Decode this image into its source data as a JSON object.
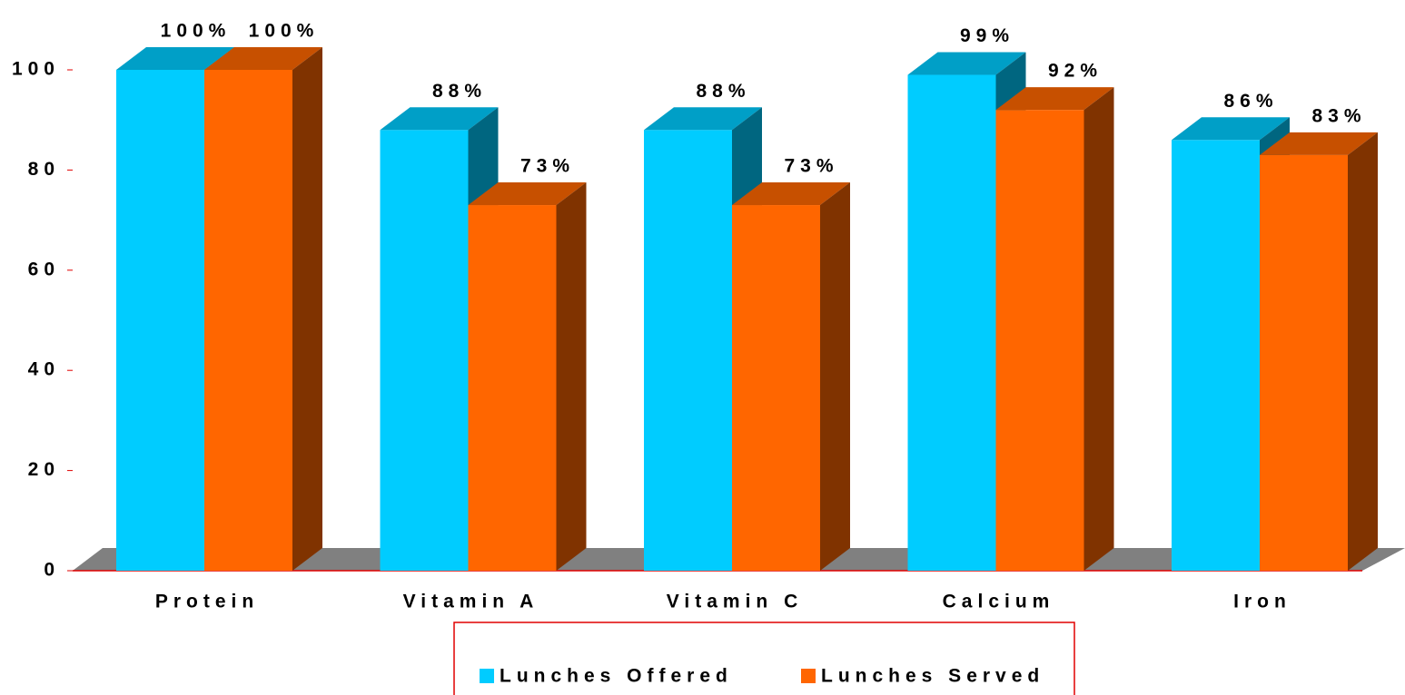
{
  "chart_data": {
    "type": "bar3d",
    "categories": [
      "Protein",
      "Vitamin A",
      "Vitamin C",
      "Calcium",
      "Iron"
    ],
    "series": [
      {
        "name": "Lunches Offered",
        "color": "#00ccff",
        "values": [
          100,
          88,
          88,
          99,
          86
        ],
        "value_labels": [
          "100%",
          "88%",
          "88%",
          "99%",
          "86%"
        ]
      },
      {
        "name": "Lunches Served",
        "color": "#ff6600",
        "values": [
          100,
          73,
          73,
          92,
          83
        ],
        "value_labels": [
          "100%",
          "73%",
          "73%",
          "92%",
          "83%"
        ]
      }
    ],
    "ylim": [
      0,
      100
    ],
    "yticks": [
      0,
      20,
      40,
      60,
      80,
      100
    ],
    "legend": "bottom"
  }
}
